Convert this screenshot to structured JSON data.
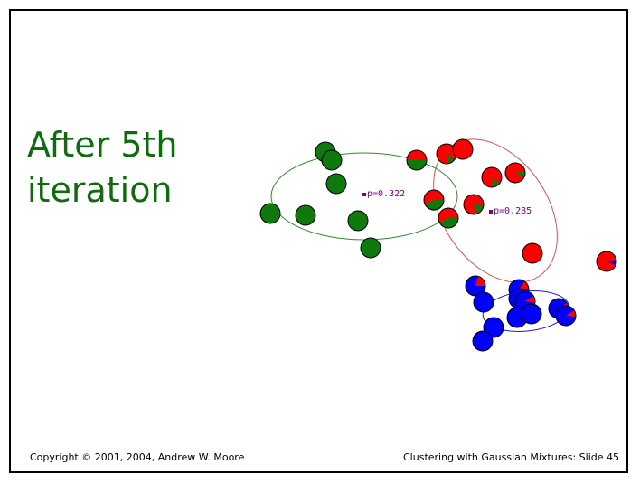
{
  "slide": {
    "title_line1": "After 5th",
    "title_line2": "iteration",
    "footer_left": "Copyright © 2001, 2004, Andrew W. Moore",
    "footer_right": "Clustering with Gaussian Mixtures: Slide 45"
  },
  "colors": {
    "title": "#0e6b0e",
    "green_component": "#0e7a0e",
    "red_component": "#ff0000",
    "blue_component": "#0000ff",
    "ellipse_green": "#2e8b2e",
    "ellipse_red": "#e05050",
    "ellipse_blue": "#2020cc",
    "label_text": "#800080"
  },
  "components": [
    {
      "name": "green",
      "p_label": "p=0.322"
    },
    {
      "name": "red",
      "p_label": "p=0.285"
    },
    {
      "name": "blue",
      "p_label": ""
    }
  ]
}
